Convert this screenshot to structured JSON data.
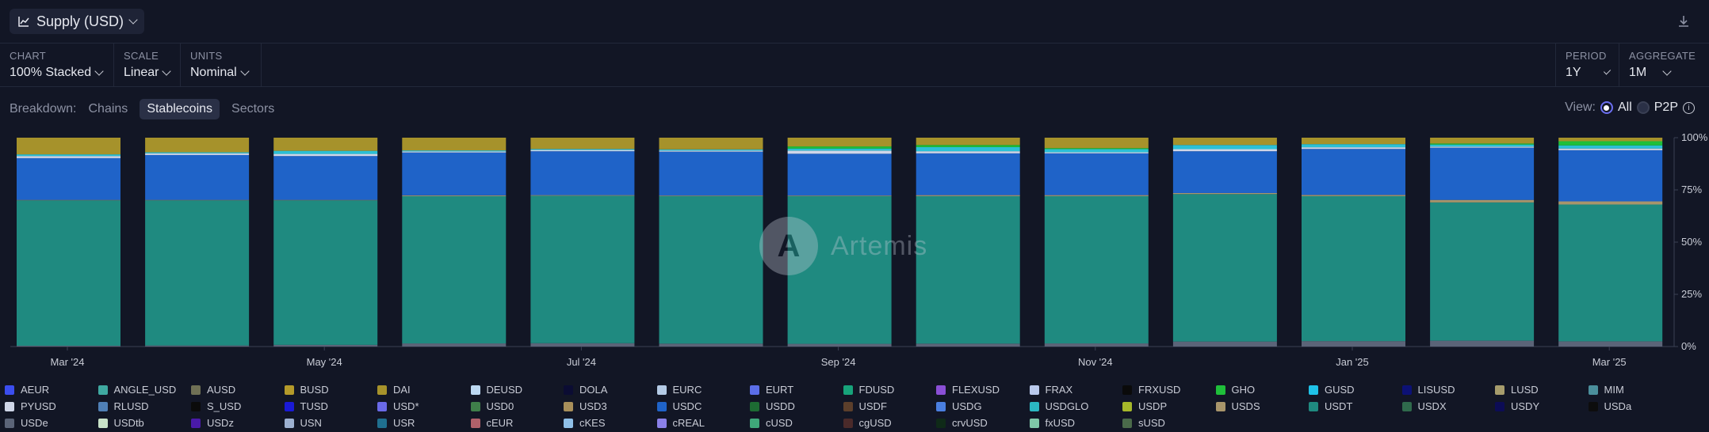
{
  "header": {
    "title": "Supply (USD)"
  },
  "controls": {
    "chart": {
      "label": "CHART",
      "value": "100% Stacked"
    },
    "scale": {
      "label": "SCALE",
      "value": "Linear"
    },
    "units": {
      "label": "UNITS",
      "value": "Nominal"
    },
    "period": {
      "label": "PERIOD",
      "value": "1Y"
    },
    "aggregate": {
      "label": "AGGREGATE",
      "value": "1M"
    }
  },
  "breakdown": {
    "label": "Breakdown:",
    "options": [
      "Chains",
      "Stablecoins",
      "Sectors"
    ],
    "active": "Stablecoins"
  },
  "view": {
    "label": "View:",
    "options": [
      "All",
      "P2P"
    ],
    "selected": "All"
  },
  "watermark": "Artemis",
  "chart_data": {
    "type": "bar",
    "stacked": "100%",
    "categories": [
      "Mar '24",
      "Apr '24",
      "May '24",
      "Jun '24",
      "Jul '24",
      "Aug '24",
      "Sep '24",
      "Oct '24",
      "Nov '24",
      "Dec '24",
      "Jan '25",
      "Feb '25",
      "Mar '25"
    ],
    "x_tick_labels": [
      "Mar '24",
      "May '24",
      "Jul '24",
      "Sep '24",
      "Nov '24",
      "Jan '25",
      "Mar '25"
    ],
    "y_tick_labels": [
      "100%",
      "75%",
      "50%",
      "25%",
      "0%"
    ],
    "ylim": [
      0,
      100
    ],
    "series": [
      {
        "name": "USDe",
        "color": "#5b6478",
        "values": [
          0.4,
          0.5,
          0.8,
          1.5,
          1.6,
          1.4,
          1.3,
          1.4,
          1.5,
          2.4,
          2.6,
          2.8,
          2.5
        ]
      },
      {
        "name": "USDT",
        "color": "#1f8a80",
        "values": [
          69.6,
          69.5,
          69.2,
          70.5,
          70.6,
          70.6,
          70.7,
          70.6,
          70.5,
          70.6,
          69.4,
          66.2,
          65.5
        ]
      },
      {
        "name": "FDUSD",
        "color": "#a8956b",
        "values": [
          0.2,
          0.2,
          0.2,
          0.4,
          0.3,
          0.3,
          0.3,
          0.5,
          0.5,
          0.5,
          0.6,
          1.2,
          1.5
        ]
      },
      {
        "name": "USDC",
        "color": "#1f63c8",
        "values": [
          20.0,
          21.5,
          21.0,
          20.5,
          21.0,
          21.0,
          20.0,
          20.0,
          20.0,
          20.0,
          22.0,
          25.0,
          24.5
        ]
      },
      {
        "name": "PYUSD",
        "color": "#cfd6e8",
        "values": [
          1.0,
          0.8,
          1.0,
          0.5,
          0.6,
          0.5,
          1.5,
          1.0,
          0.5,
          1.0,
          0.8,
          0.5,
          0.8
        ]
      },
      {
        "name": "USDS",
        "color": "#2bc0d6",
        "values": [
          0.8,
          0.5,
          1.5,
          0.5,
          0.5,
          0.6,
          1.0,
          2.0,
          1.5,
          2.0,
          1.5,
          1.0,
          1.5
        ]
      },
      {
        "name": "GHO",
        "color": "#1fbf3a",
        "values": [
          0.0,
          0.0,
          0.0,
          0.0,
          0.0,
          0.0,
          1.0,
          1.0,
          0.5,
          0.0,
          0.0,
          0.5,
          2.0
        ]
      },
      {
        "name": "DAI",
        "color": "#a6922b",
        "values": [
          8.0,
          7.0,
          6.3,
          6.1,
          5.4,
          5.6,
          4.2,
          3.5,
          5.0,
          3.5,
          3.1,
          2.8,
          1.7
        ]
      }
    ],
    "legend": [
      {
        "name": "AEUR",
        "color": "#3b4ef0"
      },
      {
        "name": "ANGLE_USD",
        "color": "#3fa9a1"
      },
      {
        "name": "AUSD",
        "color": "#6f7055"
      },
      {
        "name": "BUSD",
        "color": "#b49a2a"
      },
      {
        "name": "DAI",
        "color": "#a6922b"
      },
      {
        "name": "DEUSD",
        "color": "#bcd8f2"
      },
      {
        "name": "DOLA",
        "color": "#0b0c33"
      },
      {
        "name": "EURC",
        "color": "#b4cbe6"
      },
      {
        "name": "EURT",
        "color": "#5b6ee8"
      },
      {
        "name": "FDUSD",
        "color": "#17a37a"
      },
      {
        "name": "FLEXUSD",
        "color": "#8a4fd6"
      },
      {
        "name": "FRAX",
        "color": "#b9c9ec"
      },
      {
        "name": "FRXUSD",
        "color": "#0a0a0a"
      },
      {
        "name": "GHO",
        "color": "#1fbf3a"
      },
      {
        "name": "GUSD",
        "color": "#1fc2e8"
      },
      {
        "name": "LISUSD",
        "color": "#0c1175"
      },
      {
        "name": "LUSD",
        "color": "#a69c6c"
      },
      {
        "name": "MIM",
        "color": "#4b8f9c"
      },
      {
        "name": "PYUSD",
        "color": "#cfd6e8"
      },
      {
        "name": "RLUSD",
        "color": "#4f7fb6"
      },
      {
        "name": "S_USD",
        "color": "#0b0b0b"
      },
      {
        "name": "TUSD",
        "color": "#1a1ad6"
      },
      {
        "name": "USD*",
        "color": "#6a6ae8"
      },
      {
        "name": "USD0",
        "color": "#3f7f4a"
      },
      {
        "name": "USD3",
        "color": "#a88f5a"
      },
      {
        "name": "USDC",
        "color": "#1f63c8"
      },
      {
        "name": "USDD",
        "color": "#1d6b33"
      },
      {
        "name": "USDF",
        "color": "#5c3f2b"
      },
      {
        "name": "USDG",
        "color": "#4a7fe0"
      },
      {
        "name": "USDGLO",
        "color": "#2bb7c2"
      },
      {
        "name": "USDP",
        "color": "#a6b82a"
      },
      {
        "name": "USDS",
        "color": "#a8956b"
      },
      {
        "name": "USDT",
        "color": "#1f8a80"
      },
      {
        "name": "USDX",
        "color": "#2f6a4c"
      },
      {
        "name": "USDY",
        "color": "#0c0c55"
      },
      {
        "name": "USDa",
        "color": "#0d0d0d"
      },
      {
        "name": "USDe",
        "color": "#5b6478"
      },
      {
        "name": "USDtb",
        "color": "#c8e2c8"
      },
      {
        "name": "USDz",
        "color": "#4a1aa8"
      },
      {
        "name": "USN",
        "color": "#9cb0d0"
      },
      {
        "name": "USR",
        "color": "#1f6f8f"
      },
      {
        "name": "cEUR",
        "color": "#b0606a"
      },
      {
        "name": "cKES",
        "color": "#8fc0e8"
      },
      {
        "name": "cREAL",
        "color": "#8a80e8"
      },
      {
        "name": "cUSD",
        "color": "#3fa87a"
      },
      {
        "name": "cgUSD",
        "color": "#4a2a2a"
      },
      {
        "name": "crvUSD",
        "color": "#0f2a18"
      },
      {
        "name": "fxUSD",
        "color": "#7fc8a8"
      },
      {
        "name": "sUSD",
        "color": "#4a6a4a"
      }
    ]
  }
}
